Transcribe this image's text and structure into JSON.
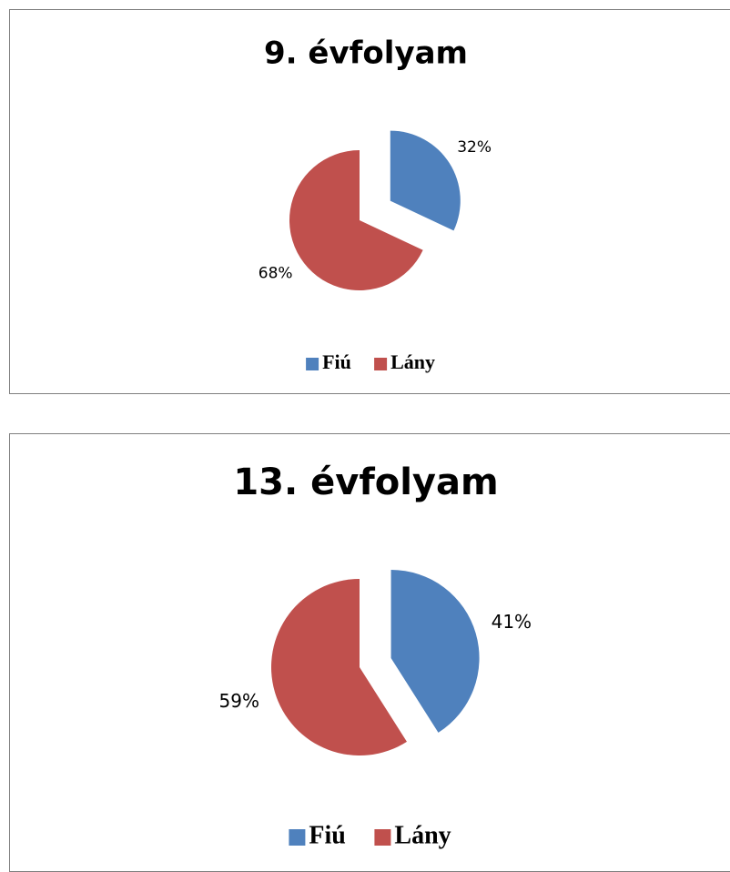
{
  "chart_data": [
    {
      "type": "pie",
      "title": "9. évfolyam",
      "categories": [
        "Fiú",
        "Lány"
      ],
      "values": [
        32,
        68
      ],
      "value_labels": [
        "32%",
        "68%"
      ],
      "colors": [
        "#4f81bd",
        "#c0504d"
      ],
      "legend": "bottom"
    },
    {
      "type": "pie",
      "title": "13. évfolyam",
      "categories": [
        "Fiú",
        "Lány"
      ],
      "values": [
        41,
        59
      ],
      "value_labels": [
        "41%",
        "59%"
      ],
      "colors": [
        "#4f81bd",
        "#c0504d"
      ],
      "legend": "bottom"
    }
  ]
}
